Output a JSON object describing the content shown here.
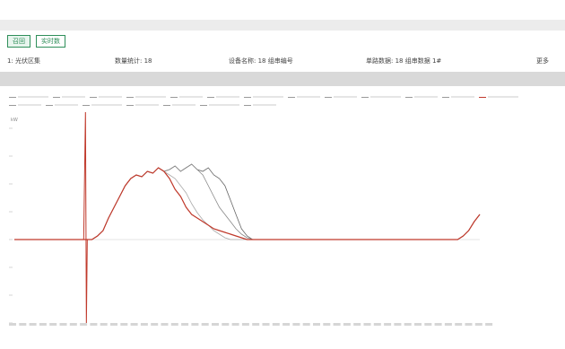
{
  "toolbar": {
    "buttons": [
      {
        "label": "召回",
        "style": "primary"
      },
      {
        "label": "实时数",
        "style": "normal"
      }
    ]
  },
  "info": {
    "station": "1: 光伏区集",
    "count": "数量统计: 18",
    "device": "设备名称: 18 组串编号",
    "detail": "单路数据: 18 组串数据 1#",
    "more": "更多"
  },
  "chart_data": {
    "type": "line",
    "ylabel": "kW",
    "x_tick_count": 48,
    "baseline": 0,
    "series": [
      {
        "color": "#666666",
        "values": [
          0,
          0,
          0,
          0,
          0,
          0,
          0,
          0,
          0,
          0,
          0,
          0,
          0,
          0,
          0,
          2,
          5,
          12,
          18,
          24,
          30,
          34,
          36,
          35,
          38,
          37,
          40,
          38,
          39,
          41,
          38,
          40,
          42,
          39,
          38,
          40,
          36,
          34,
          30,
          22,
          14,
          6,
          2,
          0,
          0,
          0,
          0,
          0,
          0,
          0,
          0,
          0,
          0,
          0,
          0,
          0,
          0,
          0,
          0,
          0,
          0,
          0,
          0,
          0,
          0,
          0,
          0,
          0,
          0,
          0,
          0,
          0,
          0,
          0,
          0,
          0,
          0,
          0,
          0,
          0,
          0,
          2,
          5,
          10,
          14
        ]
      },
      {
        "color": "#888888",
        "values": [
          0,
          0,
          0,
          0,
          0,
          0,
          0,
          0,
          0,
          0,
          0,
          0,
          0,
          0,
          0,
          2,
          5,
          12,
          18,
          24,
          30,
          34,
          36,
          35,
          38,
          37,
          40,
          38,
          39,
          41,
          38,
          40,
          42,
          39,
          36,
          30,
          24,
          18,
          14,
          10,
          6,
          3,
          1,
          0,
          0,
          0,
          0,
          0,
          0,
          0,
          0,
          0,
          0,
          0,
          0,
          0,
          0,
          0,
          0,
          0,
          0,
          0,
          0,
          0,
          0,
          0,
          0,
          0,
          0,
          0,
          0,
          0,
          0,
          0,
          0,
          0,
          0,
          0,
          0,
          0,
          0,
          2,
          5,
          10,
          14
        ]
      },
      {
        "color": "#aaaaaa",
        "values": [
          0,
          0,
          0,
          0,
          0,
          0,
          0,
          0,
          0,
          0,
          0,
          0,
          0,
          0,
          0,
          2,
          5,
          12,
          18,
          24,
          30,
          34,
          36,
          35,
          38,
          37,
          40,
          38,
          36,
          34,
          30,
          26,
          20,
          15,
          11,
          8,
          5,
          3,
          1,
          0,
          0,
          0,
          0,
          0,
          0,
          0,
          0,
          0,
          0,
          0,
          0,
          0,
          0,
          0,
          0,
          0,
          0,
          0,
          0,
          0,
          0,
          0,
          0,
          0,
          0,
          0,
          0,
          0,
          0,
          0,
          0,
          0,
          0,
          0,
          0,
          0,
          0,
          0,
          0,
          0,
          0,
          2,
          5,
          10,
          14
        ]
      },
      {
        "color": "#c0392b",
        "values": [
          0,
          0,
          0,
          0,
          0,
          0,
          0,
          0,
          0,
          0,
          0,
          0,
          0,
          0,
          0,
          2,
          5,
          12,
          18,
          24,
          30,
          34,
          36,
          35,
          38,
          37,
          40,
          38,
          34,
          28,
          24,
          18,
          14,
          12,
          10,
          8,
          6,
          5,
          4,
          3,
          2,
          1,
          0,
          0,
          0,
          0,
          0,
          0,
          0,
          0,
          0,
          0,
          0,
          0,
          0,
          0,
          0,
          0,
          0,
          0,
          0,
          0,
          0,
          0,
          0,
          0,
          0,
          0,
          0,
          0,
          0,
          0,
          0,
          0,
          0,
          0,
          0,
          0,
          0,
          0,
          0,
          2,
          5,
          10,
          14
        ]
      }
    ],
    "spike": {
      "index": 13,
      "high": 72,
      "low": -48
    }
  },
  "colors": {
    "accent": "#2f8f5a",
    "band": "#d9d9d9"
  }
}
